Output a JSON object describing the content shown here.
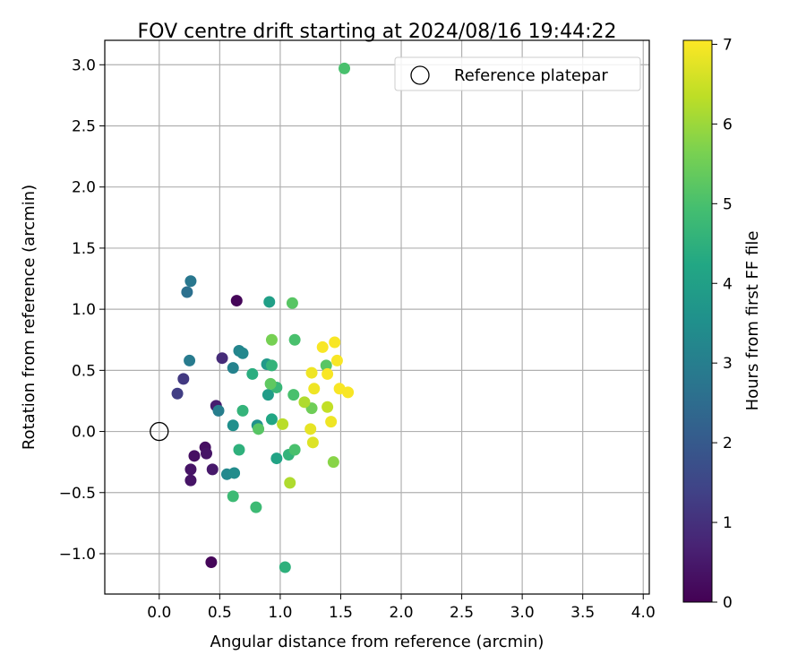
{
  "chart_data": {
    "type": "scatter",
    "title": "FOV centre drift starting at 2024/08/16 19:44:22",
    "xlabel": "Angular distance from reference (arcmin)",
    "ylabel": "Rotation from reference (arcmin)",
    "xlim": [
      -0.45,
      4.05
    ],
    "ylim": [
      -1.33,
      3.2
    ],
    "xticks": [
      "0.0",
      "0.5",
      "1.0",
      "1.5",
      "2.0",
      "2.5",
      "3.0",
      "3.5",
      "4.0"
    ],
    "yticks": [
      "−1.0",
      "−0.5",
      "0.0",
      "0.5",
      "1.0",
      "1.5",
      "2.0",
      "2.5",
      "3.0"
    ],
    "grid": true,
    "legend": {
      "position": "top-right",
      "entries": [
        "Reference platepar"
      ]
    },
    "reference_point": {
      "x": 0.0,
      "y": 0.0
    },
    "colorbar": {
      "label": "Hours from first FF file",
      "min": 0,
      "max": 7.05,
      "ticks": [
        "0",
        "1",
        "2",
        "3",
        "4",
        "5",
        "6",
        "7"
      ],
      "colormap": "viridis"
    },
    "points": [
      {
        "x": 0.64,
        "y": 1.07,
        "h": 0.1
      },
      {
        "x": 0.43,
        "y": -1.07,
        "h": 0.1
      },
      {
        "x": 0.38,
        "y": -0.13,
        "h": 0.3
      },
      {
        "x": 0.29,
        "y": -0.2,
        "h": 0.3
      },
      {
        "x": 0.26,
        "y": -0.31,
        "h": 0.4
      },
      {
        "x": 0.26,
        "y": -0.4,
        "h": 0.4
      },
      {
        "x": 0.39,
        "y": -0.18,
        "h": 0.4
      },
      {
        "x": 0.44,
        "y": -0.31,
        "h": 0.5
      },
      {
        "x": 0.47,
        "y": 0.21,
        "h": 0.6
      },
      {
        "x": 0.52,
        "y": 0.6,
        "h": 0.9
      },
      {
        "x": 0.2,
        "y": 0.43,
        "h": 1.2
      },
      {
        "x": 0.15,
        "y": 0.31,
        "h": 1.3
      },
      {
        "x": 0.23,
        "y": 1.14,
        "h": 2.6
      },
      {
        "x": 0.26,
        "y": 1.23,
        "h": 2.8
      },
      {
        "x": 0.25,
        "y": 0.58,
        "h": 2.9
      },
      {
        "x": 0.49,
        "y": 0.17,
        "h": 3.0
      },
      {
        "x": 0.61,
        "y": 0.52,
        "h": 3.1
      },
      {
        "x": 0.66,
        "y": 0.66,
        "h": 3.2
      },
      {
        "x": 0.69,
        "y": 0.64,
        "h": 3.3
      },
      {
        "x": 0.56,
        "y": -0.35,
        "h": 3.3
      },
      {
        "x": 0.62,
        "y": -0.34,
        "h": 3.4
      },
      {
        "x": 0.61,
        "y": 0.05,
        "h": 3.5
      },
      {
        "x": 0.81,
        "y": 0.05,
        "h": 3.6
      },
      {
        "x": 0.89,
        "y": 0.55,
        "h": 3.8
      },
      {
        "x": 0.9,
        "y": 0.3,
        "h": 3.9
      },
      {
        "x": 0.91,
        "y": 1.06,
        "h": 4.0
      },
      {
        "x": 0.97,
        "y": -0.22,
        "h": 4.1
      },
      {
        "x": 0.93,
        "y": 0.1,
        "h": 4.2
      },
      {
        "x": 0.77,
        "y": 0.47,
        "h": 4.4
      },
      {
        "x": 0.66,
        "y": -0.15,
        "h": 4.5
      },
      {
        "x": 0.69,
        "y": 0.17,
        "h": 4.6
      },
      {
        "x": 0.93,
        "y": 0.54,
        "h": 4.6
      },
      {
        "x": 0.97,
        "y": 0.36,
        "h": 4.7
      },
      {
        "x": 1.04,
        "y": -1.11,
        "h": 4.5
      },
      {
        "x": 1.07,
        "y": -0.19,
        "h": 4.6
      },
      {
        "x": 0.8,
        "y": -0.62,
        "h": 4.8
      },
      {
        "x": 0.61,
        "y": -0.53,
        "h": 4.8
      },
      {
        "x": 1.11,
        "y": 0.3,
        "h": 5.0
      },
      {
        "x": 1.12,
        "y": 0.75,
        "h": 5.0
      },
      {
        "x": 1.12,
        "y": -0.15,
        "h": 5.0
      },
      {
        "x": 0.82,
        "y": 0.02,
        "h": 5.2
      },
      {
        "x": 1.1,
        "y": 1.05,
        "h": 5.2
      },
      {
        "x": 1.53,
        "y": 2.97,
        "h": 5.0
      },
      {
        "x": 1.38,
        "y": 0.54,
        "h": 5.2
      },
      {
        "x": 0.92,
        "y": 0.39,
        "h": 5.3
      },
      {
        "x": 0.93,
        "y": 0.75,
        "h": 5.6
      },
      {
        "x": 1.26,
        "y": 0.19,
        "h": 5.5
      },
      {
        "x": 1.44,
        "y": -0.25,
        "h": 5.8
      },
      {
        "x": 1.08,
        "y": -0.42,
        "h": 6.2
      },
      {
        "x": 1.2,
        "y": 0.24,
        "h": 6.2
      },
      {
        "x": 1.02,
        "y": 0.06,
        "h": 6.3
      },
      {
        "x": 1.39,
        "y": 0.2,
        "h": 6.4
      },
      {
        "x": 1.27,
        "y": -0.09,
        "h": 6.7
      },
      {
        "x": 1.25,
        "y": 0.02,
        "h": 6.8
      },
      {
        "x": 1.42,
        "y": 0.08,
        "h": 6.9
      },
      {
        "x": 1.28,
        "y": 0.35,
        "h": 6.9
      },
      {
        "x": 1.26,
        "y": 0.48,
        "h": 6.9
      },
      {
        "x": 1.39,
        "y": 0.47,
        "h": 7.0
      },
      {
        "x": 1.35,
        "y": 0.69,
        "h": 7.0
      },
      {
        "x": 1.45,
        "y": 0.73,
        "h": 7.0
      },
      {
        "x": 1.47,
        "y": 0.58,
        "h": 7.0
      },
      {
        "x": 1.49,
        "y": 0.35,
        "h": 7.0
      },
      {
        "x": 1.56,
        "y": 0.32,
        "h": 7.0
      }
    ]
  }
}
